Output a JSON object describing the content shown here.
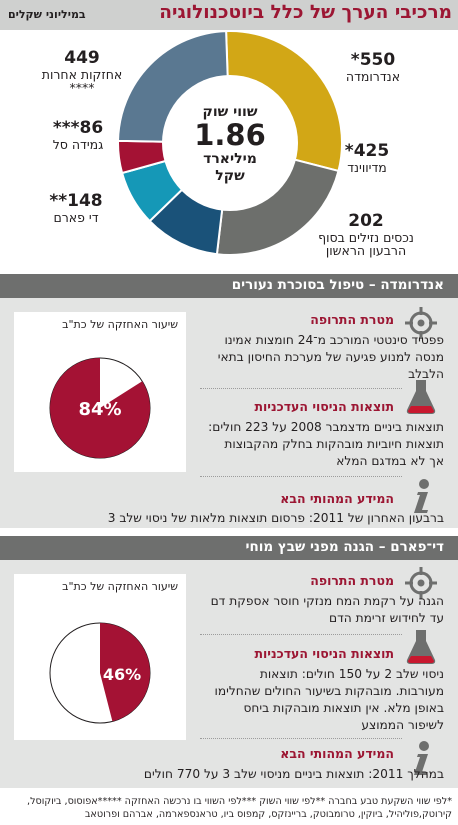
{
  "header": {
    "title": "מרכיבי הערך של כלל ביוטכנולוגיה",
    "subtitle": "במיליוני שקלים"
  },
  "center": {
    "line1": "שווי שוק",
    "value": "1.86",
    "line2": "מיליארד",
    "line3": "שקל"
  },
  "colors": {
    "andromeda": "#d2a716",
    "medivunde": "#6d6f6c",
    "cash": "#1a5279",
    "dpharm": "#1598b7",
    "gamida": "#a41234",
    "other": "#5a7891",
    "accent": "#9c1633",
    "band": "#6e6f6e",
    "panel": "#e3e4e3"
  },
  "chart_data": [
    {
      "type": "pie",
      "unit": "במיליוני שקלים",
      "total": 1.86,
      "categories": [
        "אנדרומדה",
        "מדיווינד",
        "נכסים נזילים בסוף הרבעון הראשון",
        "די פארם",
        "גמידה סל",
        "אחזקות אחרות"
      ],
      "values": [
        550,
        425,
        202,
        148,
        86,
        449
      ],
      "value_labels": [
        "550*",
        "425*",
        "202",
        "148**",
        "86***",
        "449"
      ],
      "label_suffix": [
        "",
        "",
        "",
        "",
        "",
        "****"
      ]
    },
    {
      "type": "pie",
      "title": "שיעור האחזקה של כת\"ב",
      "values": [
        84
      ],
      "label": "84%"
    },
    {
      "type": "pie",
      "title": "שיעור האחזקה של כת\"ב",
      "values": [
        46
      ],
      "label": "46%"
    }
  ],
  "section1": {
    "band": "אנדרומדה – טיפול בסוכרת נעורים",
    "pie_caption": "שיעור האחזקה של כת\"ב",
    "pie_label": "84%",
    "target_title": "מטרת התרופה",
    "target_text": "פפטיד סינטטי המורכב מ־24 חומצות אמינו מנסה למנוע פגיעה של מערכת החיסון בתאי הלבלב",
    "results_title": "תוצאות הניסוי העדכניות",
    "results_text": "תוצאות ביניים מדצמבר 2008 על 223 חולים: תוצאות חיוביות מובהקות בחלק מהקבוצות אך לא במדגם המלא",
    "info_title": "המידע המהותי הבא",
    "info_text": "ברבעון האחרון של 2011: פרסום תוצאות מלאות של ניסוי שלב 3"
  },
  "section2": {
    "band": "די־פארם – הגנה מפני שבץ מוחי",
    "pie_caption": "שיעור האחזקה של כת\"ב",
    "pie_label": "46%",
    "target_title": "מטרת התרופה",
    "target_text": "הגנה על רקמת המח מנזקי חוסר אספקת דם עד לחידוש זרימת הדם",
    "results_title": "תוצאות הניסוי העדכניות",
    "results_text": "ניסוי שלב 2 על 150 חולים: תוצאות מעורבות. מובהקות בשיעור החולים שהחלימו באופן מלא. אין תוצאות מובהקות ביחס לשיפור הממוצע",
    "info_title": "המידע המהותי הבא",
    "info_text": "במהלך 2011: תוצאות ביניים מניסוי שלב 3 על 770 חולים"
  },
  "footnote": "*לפי שווי השקעת טבע בחברה      **לפי שווי השוק      ***לפי השווי בו נרכשה האחזקה      *****אפוסוס, ביוקוסל, קירוטק,פוליהיל, ביוקין, טרומבוטק, בריינזקס, קמפוס ביו, טראנספארמה, אברהם ופרוטאב"
}
